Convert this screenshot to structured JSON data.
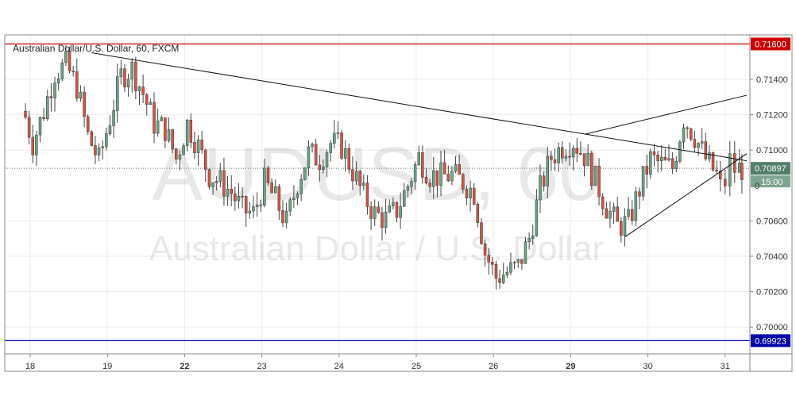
{
  "chart_data": {
    "type": "candlestick",
    "title": "Australian Dollar/U.S. Dollar, 60, FXCM",
    "watermark_symbol": "AUDUSD, 60",
    "watermark_name": "Australian Dollar / U.S. Dollar",
    "x_tick_labels": [
      "18",
      "19",
      "22",
      "23",
      "24",
      "25",
      "26",
      "29",
      "30",
      "31"
    ],
    "bold_x_tick_labels": [
      "22",
      "29"
    ],
    "y_tick_labels": [
      "0.71400",
      "0.71200",
      "0.71000",
      "0.70600",
      "0.70400",
      "0.70200",
      "0.70000"
    ],
    "ylim": [
      0.6985,
      0.717
    ],
    "grid": true,
    "colors": {
      "up": "#6ba583",
      "down": "#d75442",
      "wick": "#444444",
      "resistance": "#cc0000",
      "support": "#0000aa",
      "trendline": "#111111",
      "current_price": "#537f6a"
    },
    "horizontal_lines": [
      {
        "value": 0.716,
        "label": "0.71600",
        "color": "#cc0000"
      },
      {
        "value": 0.69923,
        "label": "0.69923",
        "color": "#0000aa"
      }
    ],
    "current_price": {
      "value": 0.70897,
      "label": "0.70897",
      "countdown": "15:00",
      "partial": "0"
    },
    "trendlines": [
      {
        "from": {
          "day": "19",
          "price": 0.7155
        },
        "to": {
          "day": "31",
          "price": 0.7094
        }
      },
      {
        "from": {
          "day": "29",
          "price": 0.7109
        },
        "to": {
          "day": "31",
          "price": 0.7131
        }
      },
      {
        "from": {
          "day": "29",
          "price": 0.7051
        },
        "to": {
          "day": "31",
          "price": 0.7098
        }
      }
    ],
    "session_closes": [
      {
        "day": "18",
        "close": [
          0.7126,
          0.7104,
          0.7122,
          0.7144,
          0.7148,
          0.7136,
          0.7108
        ]
      },
      {
        "day": "19",
        "close": [
          0.7094,
          0.7118,
          0.7142,
          0.7146,
          0.7132,
          0.7115,
          0.7112
        ]
      },
      {
        "day": "22",
        "close": [
          0.7095,
          0.7115,
          0.7102,
          0.7086,
          0.7082,
          0.7076,
          0.7066
        ]
      },
      {
        "day": "23",
        "close": [
          0.7064,
          0.7082,
          0.7072,
          0.7059,
          0.7082,
          0.7098,
          0.7095
        ]
      },
      {
        "day": "24",
        "close": [
          0.7104,
          0.7102,
          0.7088,
          0.7074,
          0.7064,
          0.7061,
          0.7066
        ]
      },
      {
        "day": "25",
        "close": [
          0.708,
          0.7096,
          0.7086,
          0.7085,
          0.7086,
          0.7082,
          0.7076
        ]
      },
      {
        "day": "26",
        "close": [
          0.7042,
          0.7028,
          0.7031,
          0.7034,
          0.705,
          0.7078,
          0.7096
        ]
      },
      {
        "day": "29",
        "close": [
          0.7102,
          0.7105,
          0.7097,
          0.7083,
          0.7068,
          0.7057,
          0.7059
        ]
      },
      {
        "day": "30",
        "close": [
          0.7078,
          0.7095,
          0.7092,
          0.709,
          0.7118,
          0.7108,
          0.7095
        ]
      },
      {
        "day": "31",
        "close": [
          0.7086,
          0.7079,
          0.7082,
          0.7094,
          0.7089
        ]
      }
    ]
  }
}
